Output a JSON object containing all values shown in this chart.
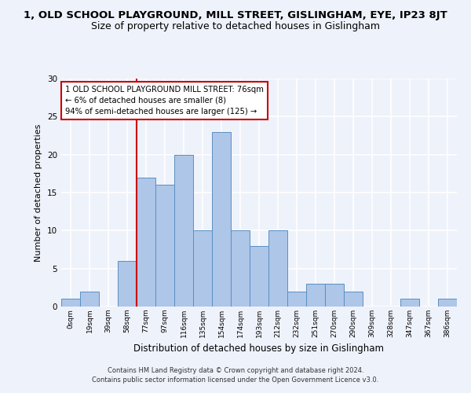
{
  "title": "1, OLD SCHOOL PLAYGROUND, MILL STREET, GISLINGHAM, EYE, IP23 8JT",
  "subtitle": "Size of property relative to detached houses in Gislingham",
  "xlabel": "Distribution of detached houses by size in Gislingham",
  "ylabel": "Number of detached properties",
  "bin_labels": [
    "0sqm",
    "19sqm",
    "39sqm",
    "58sqm",
    "77sqm",
    "97sqm",
    "116sqm",
    "135sqm",
    "154sqm",
    "174sqm",
    "193sqm",
    "212sqm",
    "232sqm",
    "251sqm",
    "270sqm",
    "290sqm",
    "309sqm",
    "328sqm",
    "347sqm",
    "367sqm",
    "386sqm"
  ],
  "bar_values": [
    1,
    2,
    0,
    6,
    17,
    16,
    20,
    10,
    23,
    10,
    8,
    10,
    2,
    3,
    3,
    2,
    0,
    0,
    1,
    0,
    1
  ],
  "bar_color": "#aec6e8",
  "bar_edgecolor": "#5a8fc2",
  "highlight_bin": 4,
  "red_line_color": "#cc0000",
  "annotation_text": "1 OLD SCHOOL PLAYGROUND MILL STREET: 76sqm\n← 6% of detached houses are smaller (8)\n94% of semi-detached houses are larger (125) →",
  "annotation_box_color": "#ffffff",
  "annotation_box_edgecolor": "#cc0000",
  "ylim": [
    0,
    30
  ],
  "yticks": [
    0,
    5,
    10,
    15,
    20,
    25,
    30
  ],
  "footer": "Contains HM Land Registry data © Crown copyright and database right 2024.\nContains public sector information licensed under the Open Government Licence v3.0.",
  "bg_color": "#eef2fb",
  "grid_color": "#ffffff",
  "title_fontsize": 9.5,
  "subtitle_fontsize": 9.0,
  "ylabel_fontsize": 8,
  "xlabel_fontsize": 8.5
}
